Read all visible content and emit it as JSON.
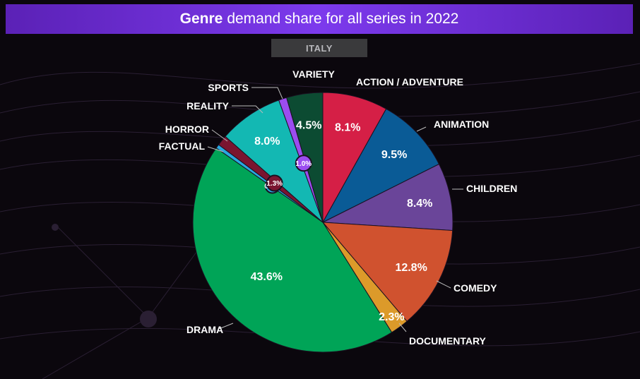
{
  "title": {
    "bold": "Genre",
    "rest": "demand share for all series in 2022"
  },
  "region": "ITALY",
  "colors": {
    "Action / Adventure": "#d51f46",
    "Animation": "#0a5b96",
    "Children": "#6a4599",
    "Comedy": "#d0522f",
    "Documentary": "#dc9a2a",
    "Drama": "#00a457",
    "Factual": "#29a8e0",
    "Horror": "#7a1530",
    "Reality": "#13b8b3",
    "Sports": "#9b4df0",
    "Variety": "#0c4b32"
  },
  "chart_data": {
    "type": "pie",
    "title": "Genre demand share for all series in 2022",
    "subtitle": "ITALY",
    "slices": [
      {
        "label": "ACTION / ADVENTURE",
        "value": 8.1,
        "display": "8.1%"
      },
      {
        "label": "ANIMATION",
        "value": 9.5,
        "display": "9.5%"
      },
      {
        "label": "CHILDREN",
        "value": 8.4,
        "display": "8.4%"
      },
      {
        "label": "COMEDY",
        "value": 12.8,
        "display": "12.8%"
      },
      {
        "label": "DOCUMENTARY",
        "value": 2.3,
        "display": "2.3%"
      },
      {
        "label": "DRAMA",
        "value": 43.6,
        "display": "43.6%"
      },
      {
        "label": "FACTUAL",
        "value": 0.5,
        "display": "0.5%"
      },
      {
        "label": "HORROR",
        "value": 1.3,
        "display": "1.3%"
      },
      {
        "label": "REALITY",
        "value": 8.0,
        "display": "8.0%"
      },
      {
        "label": "SPORTS",
        "value": 1.0,
        "display": "1.0%"
      },
      {
        "label": "VARIETY",
        "value": 4.5,
        "display": "4.5%"
      }
    ]
  }
}
